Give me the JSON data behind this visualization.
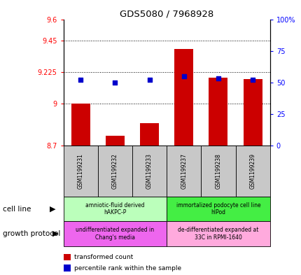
{
  "title": "GDS5080 / 7968928",
  "samples": [
    "GSM1199231",
    "GSM1199232",
    "GSM1199233",
    "GSM1199237",
    "GSM1199238",
    "GSM1199239"
  ],
  "bar_values": [
    9.0,
    8.77,
    8.86,
    9.39,
    9.185,
    9.175
  ],
  "bar_bottom": 8.7,
  "bar_color": "#cc0000",
  "dot_values": [
    52,
    50,
    52,
    55,
    53,
    52
  ],
  "dot_color": "#0000cc",
  "ylim_left": [
    8.7,
    9.6
  ],
  "ylim_right": [
    0,
    100
  ],
  "yticks_left": [
    8.7,
    9.0,
    9.225,
    9.45,
    9.6
  ],
  "ytick_labels_left": [
    "8.7",
    "9",
    "9.225",
    "9.45",
    "9.6"
  ],
  "yticks_right": [
    0,
    25,
    50,
    75,
    100
  ],
  "ytick_labels_right": [
    "0",
    "25",
    "50",
    "75",
    "100%"
  ],
  "hlines": [
    9.0,
    9.225,
    9.45
  ],
  "cell_line_groups": [
    {
      "label": "amniotic-fluid derived\nhAKPC-P",
      "color": "#bbffbb",
      "span": [
        0,
        3
      ]
    },
    {
      "label": "immortalized podocyte cell line\nhIPod",
      "color": "#44ee44",
      "span": [
        3,
        6
      ]
    }
  ],
  "growth_protocol_groups": [
    {
      "label": "undifferentiated expanded in\nChang's media",
      "color": "#ee66ee",
      "span": [
        0,
        3
      ]
    },
    {
      "label": "de-differentiated expanded at\n33C in RPMI-1640",
      "color": "#ffaadd",
      "span": [
        3,
        6
      ]
    }
  ],
  "cell_line_label": "cell line",
  "growth_protocol_label": "growth protocol",
  "legend_items": [
    {
      "color": "#cc0000",
      "label": "transformed count"
    },
    {
      "color": "#0000cc",
      "label": "percentile rank within the sample"
    }
  ],
  "bar_width": 0.55,
  "sample_area_color": "#c8c8c8"
}
